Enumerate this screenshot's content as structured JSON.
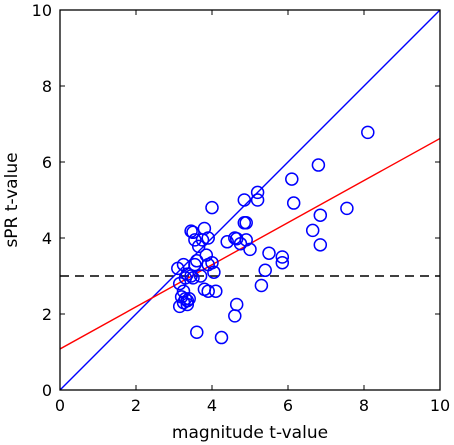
{
  "chart_data": {
    "type": "scatter",
    "xlabel": "magnitude t-value",
    "ylabel": "sPR t-value",
    "xlim": [
      0,
      10
    ],
    "ylim": [
      0,
      10
    ],
    "xticks": [
      "0",
      "2",
      "4",
      "6",
      "8",
      "10"
    ],
    "yticks": [
      "0",
      "2",
      "4",
      "6",
      "8",
      "10"
    ],
    "grid": false,
    "colors": {
      "points": "#0000ff",
      "identity_line": "#0000ff",
      "fit_line": "#ff0000",
      "threshold_line": "#000000"
    },
    "points": [
      [
        3.1,
        3.2
      ],
      [
        3.25,
        3.3
      ],
      [
        3.3,
        2.95
      ],
      [
        3.35,
        3.05
      ],
      [
        3.45,
        3.0
      ],
      [
        3.5,
        2.95
      ],
      [
        3.55,
        3.3
      ],
      [
        3.6,
        3.4
      ],
      [
        3.7,
        3.0
      ],
      [
        3.15,
        2.8
      ],
      [
        3.25,
        2.6
      ],
      [
        3.3,
        2.4
      ],
      [
        3.2,
        2.45
      ],
      [
        3.35,
        2.35
      ],
      [
        3.4,
        2.4
      ],
      [
        3.25,
        2.3
      ],
      [
        3.15,
        2.2
      ],
      [
        3.35,
        2.25
      ],
      [
        3.45,
        4.18
      ],
      [
        3.5,
        4.15
      ],
      [
        3.55,
        3.95
      ],
      [
        3.65,
        3.78
      ],
      [
        3.75,
        3.95
      ],
      [
        3.8,
        4.25
      ],
      [
        3.9,
        4.0
      ],
      [
        3.85,
        3.55
      ],
      [
        3.9,
        3.3
      ],
      [
        4.0,
        4.8
      ],
      [
        4.05,
        3.1
      ],
      [
        4.0,
        3.35
      ],
      [
        3.8,
        2.65
      ],
      [
        3.9,
        2.6
      ],
      [
        4.1,
        2.6
      ],
      [
        3.6,
        1.52
      ],
      [
        4.25,
        1.38
      ],
      [
        4.4,
        3.9
      ],
      [
        4.6,
        4.0
      ],
      [
        4.65,
        3.98
      ],
      [
        4.75,
        3.85
      ],
      [
        4.85,
        5.0
      ],
      [
        4.85,
        4.4
      ],
      [
        4.9,
        4.4
      ],
      [
        4.9,
        3.95
      ],
      [
        5.0,
        3.7
      ],
      [
        4.6,
        1.95
      ],
      [
        4.65,
        2.25
      ],
      [
        5.2,
        5.2
      ],
      [
        5.2,
        5.0
      ],
      [
        5.3,
        2.75
      ],
      [
        5.4,
        3.15
      ],
      [
        5.5,
        3.6
      ],
      [
        5.85,
        3.5
      ],
      [
        5.85,
        3.35
      ],
      [
        6.1,
        5.55
      ],
      [
        6.15,
        4.92
      ],
      [
        6.65,
        4.2
      ],
      [
        6.8,
        5.92
      ],
      [
        6.85,
        4.6
      ],
      [
        6.85,
        3.82
      ],
      [
        7.55,
        4.78
      ],
      [
        8.1,
        6.78
      ]
    ],
    "identity_line": {
      "x": [
        0,
        10
      ],
      "y": [
        0,
        10
      ]
    },
    "fit_line": {
      "x": [
        0,
        10
      ],
      "y": [
        1.08,
        6.62
      ]
    },
    "threshold_line": {
      "y": 3.0
    }
  }
}
